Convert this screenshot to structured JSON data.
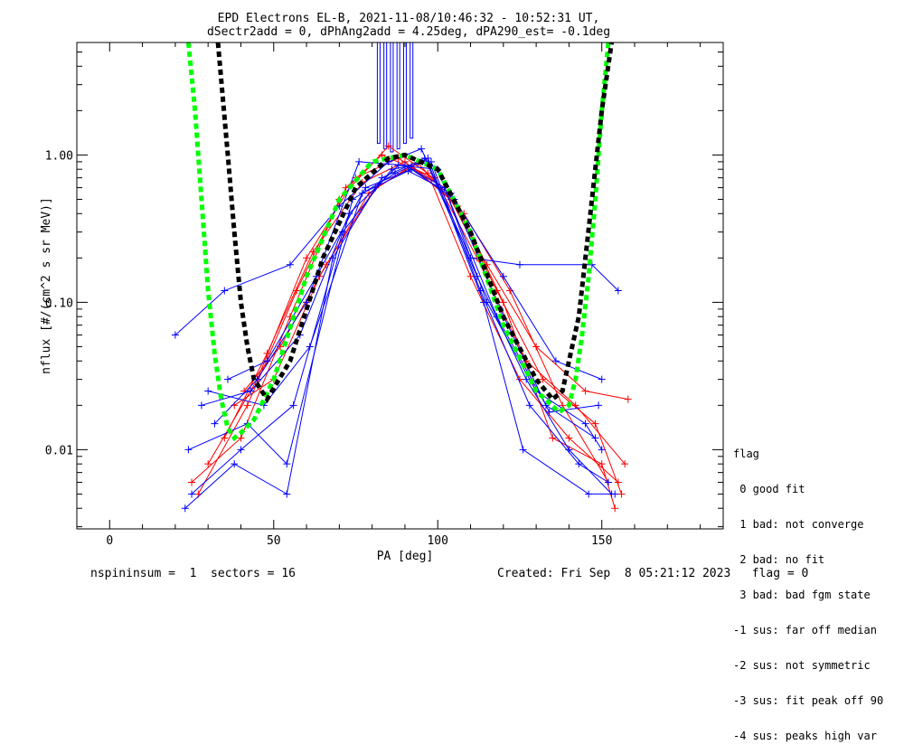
{
  "header": {
    "title_line1": "EPD Electrons EL-B, 2021-11-08/10:46:32 - 10:52:31 UT,",
    "title_line2": "dSectr2add = 0, dPhAng2add = 4.25deg, dPA290_est=  -0.1deg"
  },
  "footer": {
    "left": "nspininsum =  1  sectors = 16",
    "right": "Created: Fri Sep  8 05:21:12 2023   flag = 0"
  },
  "flag_legend": {
    "title": "flag",
    "items": [
      " 0 good fit",
      " 1 bad: not converge",
      " 2 bad: no fit",
      " 3 bad: bad fgm state",
      "-1 sus: far off median",
      "-2 sus: not symmetric",
      "-3 sus: fit peak off 90",
      "-4 sus: peaks high var"
    ]
  },
  "colors": {
    "red_series": "#ff0000",
    "blue_series": "#0000ff",
    "fit_green": "#00ff00",
    "fit_black": "#000000"
  },
  "chart_data": {
    "type": "line",
    "xlabel": "PA [deg]",
    "ylabel": "nflux [#/(cm^2 s sr MeV)]",
    "xlim": [
      -10,
      187
    ],
    "ylim": [
      0.0029,
      5.8
    ],
    "yscale": "log",
    "x_ticks": [
      0,
      50,
      100,
      150
    ],
    "x_tick_labels": [
      "0",
      "50",
      "100",
      "150"
    ],
    "y_ticks": [
      0.01,
      0.1,
      1.0
    ],
    "y_tick_labels": [
      "0.01",
      "0.10",
      "1.00"
    ],
    "grid": false,
    "series": [
      {
        "color": "red",
        "x": [
          25,
          40,
          55,
          70,
          85,
          97,
          110,
          125,
          140,
          155
        ],
        "values": [
          0.006,
          0.012,
          0.08,
          0.5,
          1.15,
          0.75,
          0.15,
          0.03,
          0.012,
          0.006
        ]
      },
      {
        "color": "red",
        "x": [
          27,
          42,
          57,
          72,
          83,
          99,
          112,
          127,
          142,
          157
        ],
        "values": [
          0.005,
          0.02,
          0.12,
          0.6,
          1.0,
          0.7,
          0.2,
          0.04,
          0.02,
          0.008
        ]
      },
      {
        "color": "red",
        "x": [
          30,
          45,
          60,
          75,
          88,
          102,
          115,
          130,
          145,
          158
        ],
        "values": [
          0.008,
          0.03,
          0.2,
          0.7,
          0.95,
          0.6,
          0.18,
          0.05,
          0.025,
          0.022
        ]
      },
      {
        "color": "red",
        "x": [
          35,
          48,
          62,
          77,
          90,
          104,
          118,
          132,
          148,
          156
        ],
        "values": [
          0.012,
          0.045,
          0.22,
          0.65,
          0.9,
          0.5,
          0.12,
          0.03,
          0.015,
          0.005
        ]
      },
      {
        "color": "red",
        "x": [
          38,
          50,
          64,
          79,
          92,
          106,
          120,
          135,
          150,
          154
        ],
        "values": [
          0.02,
          0.03,
          0.15,
          0.55,
          0.85,
          0.45,
          0.1,
          0.012,
          0.008,
          0.004
        ]
      },
      {
        "color": "red",
        "x": [
          41,
          52,
          66,
          81,
          94,
          108,
          122,
          138,
          152
        ],
        "values": [
          0.025,
          0.05,
          0.18,
          0.6,
          0.88,
          0.4,
          0.12,
          0.02,
          0.006
        ]
      },
      {
        "color": "blue",
        "x": [
          20,
          35,
          55,
          70,
          85,
          95,
          110,
          125,
          147,
          155
        ],
        "values": [
          0.06,
          0.12,
          0.18,
          0.45,
          0.9,
          1.1,
          0.2,
          0.18,
          0.18,
          0.12
        ]
      },
      {
        "color": "blue",
        "x": [
          23,
          38,
          54,
          68,
          83,
          96,
          112,
          127,
          140,
          153
        ],
        "values": [
          0.004,
          0.008,
          0.005,
          0.2,
          0.7,
          0.95,
          0.15,
          0.03,
          0.01,
          0.005
        ]
      },
      {
        "color": "blue",
        "x": [
          25,
          40,
          56,
          71,
          86,
          98,
          113,
          128,
          143,
          152
        ],
        "values": [
          0.005,
          0.01,
          0.02,
          0.3,
          0.8,
          0.9,
          0.12,
          0.02,
          0.008,
          0.006
        ]
      },
      {
        "color": "blue",
        "x": [
          28,
          43,
          58,
          73,
          88,
          100,
          115,
          130,
          145,
          150
        ],
        "values": [
          0.02,
          0.025,
          0.06,
          0.4,
          0.85,
          0.8,
          0.1,
          0.025,
          0.015,
          0.01
        ]
      },
      {
        "color": "blue",
        "x": [
          32,
          45,
          60,
          76,
          90,
          102,
          118,
          133,
          148
        ],
        "values": [
          0.015,
          0.03,
          0.1,
          0.9,
          0.85,
          0.6,
          0.08,
          0.02,
          0.012
        ]
      },
      {
        "color": "blue",
        "x": [
          36,
          48,
          63,
          78,
          92,
          105,
          120,
          136,
          150
        ],
        "values": [
          0.03,
          0.04,
          0.15,
          0.6,
          0.8,
          0.5,
          0.15,
          0.04,
          0.03
        ]
      },
      {
        "color": "blue",
        "x": [
          24,
          42,
          54,
          74,
          87,
          97,
          114,
          126,
          146,
          154
        ],
        "values": [
          0.01,
          0.015,
          0.008,
          0.5,
          0.75,
          0.95,
          0.1,
          0.01,
          0.005,
          0.005
        ]
      },
      {
        "color": "blue",
        "x": [
          30,
          47,
          61,
          77,
          91,
          104,
          119,
          134,
          149
        ],
        "values": [
          0.025,
          0.02,
          0.05,
          0.55,
          0.78,
          0.55,
          0.09,
          0.018,
          0.02
        ]
      },
      {
        "color": "green",
        "dashed": true,
        "x": [
          24,
          26,
          28,
          30,
          32,
          34,
          36,
          38,
          40,
          44,
          50,
          60,
          70,
          80,
          90,
          100,
          110,
          120,
          130,
          137,
          140,
          142,
          144,
          146,
          148,
          150,
          152
        ],
        "values": [
          5.8,
          2.0,
          0.5,
          0.12,
          0.045,
          0.022,
          0.014,
          0.012,
          0.013,
          0.016,
          0.03,
          0.15,
          0.5,
          0.9,
          1.0,
          0.8,
          0.3,
          0.07,
          0.025,
          0.018,
          0.02,
          0.03,
          0.06,
          0.15,
          0.5,
          2.0,
          5.8
        ]
      },
      {
        "color": "black",
        "dashed": true,
        "x": [
          33,
          36,
          38,
          40,
          42,
          44,
          48,
          55,
          65,
          75,
          85,
          90,
          100,
          110,
          120,
          130,
          135,
          138,
          140,
          143,
          145,
          147,
          150,
          153
        ],
        "values": [
          5.8,
          1.0,
          0.3,
          0.1,
          0.05,
          0.03,
          0.022,
          0.04,
          0.2,
          0.6,
          0.95,
          1.0,
          0.8,
          0.3,
          0.08,
          0.03,
          0.022,
          0.025,
          0.04,
          0.08,
          0.2,
          0.5,
          2.0,
          5.8
        ]
      }
    ],
    "bars": {
      "color": "blue",
      "x": [
        82,
        84,
        86,
        88,
        90,
        92
      ],
      "values": [
        1.2,
        1.1,
        1.05,
        1.1,
        1.2,
        1.3
      ],
      "top": 5.8
    }
  }
}
